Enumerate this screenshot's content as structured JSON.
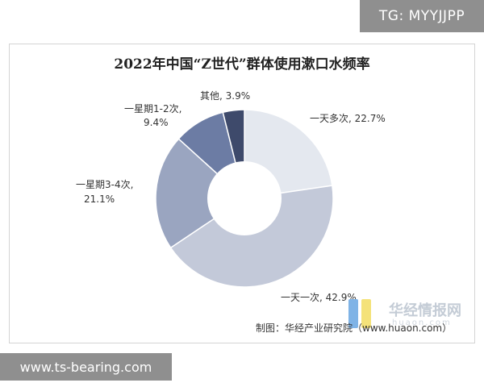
{
  "tags": {
    "top": "TG: MYYJJPP",
    "bottom": "www.ts-bearing.com"
  },
  "source": "制图：华经产业研究院（www.huaon.com）",
  "watermark": {
    "text": "华经情报网",
    "sub": "huaon.com"
  },
  "colors": {
    "slice_1": "#e4e8ef",
    "slice_2": "#c3c9d9",
    "slice_3": "#9aa5c0",
    "slice_4": "#6c7ca4",
    "slice_5": "#3e4a6b",
    "wm_blue": "#7fb3e6",
    "wm_yellow": "#f4e27a"
  },
  "chart_data": {
    "type": "pie",
    "title": "2022年中国“Z世代”群体使用漱口水频率",
    "donut": true,
    "slices": [
      {
        "label": "一天多次",
        "value": 22.7,
        "display": "一天多次, 22.7%"
      },
      {
        "label": "一天一次",
        "value": 42.9,
        "display": "一天一次, 42.9%"
      },
      {
        "label": "一星期3-4次",
        "value": 21.1,
        "display_lines": [
          "一星期3-4次,",
          "21.1%"
        ]
      },
      {
        "label": "一星期1-2次",
        "value": 9.4,
        "display_lines": [
          "一星期1-2次,",
          "9.4%"
        ]
      },
      {
        "label": "其他",
        "value": 3.9,
        "display": "其他, 3.9%"
      }
    ]
  }
}
